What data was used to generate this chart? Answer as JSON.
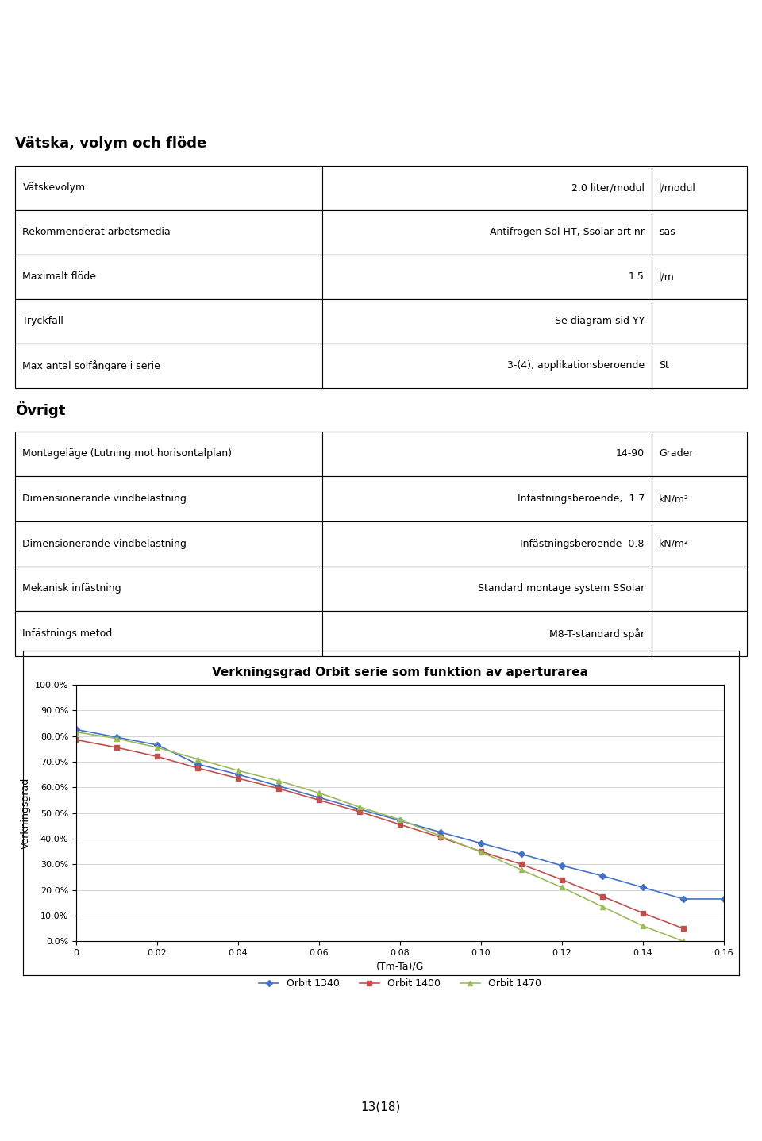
{
  "page_title": "13(18)",
  "section1_title": "Vätska, volym och flöde",
  "table1": [
    [
      "Vätskevolym",
      "2.0 liter/modul",
      "l/modul"
    ],
    [
      "Rekommenderat arbetsmedia",
      "Antifrogen Sol HT, Ssolar art nr",
      "sas"
    ],
    [
      "Maximalt flöde",
      "1.5",
      "l/m"
    ],
    [
      "Tryckfall",
      "Se diagram sid YY",
      ""
    ],
    [
      "Max antal solfångare i serie",
      "3-(4), applikationsberoende",
      "St"
    ]
  ],
  "section2_title": "Övrigt",
  "table2": [
    [
      "Montageläge (Lutning mot horisontalplan)",
      "14-90",
      "Grader"
    ],
    [
      "Dimensionerande vindbelastning",
      "Infästningsberoende,  1.7",
      "kN/m²"
    ],
    [
      "Dimensionerande vindbelastning",
      "Infästningsberoende  0.8",
      "kN/m²"
    ],
    [
      "Mekanisk infästning",
      "Standard montage system SSolar",
      ""
    ],
    [
      "Infästnings metod",
      "M8-T-standard spår",
      ""
    ]
  ],
  "chart_title": "Verkningsgrad Orbit serie som funktion av aperturarea",
  "chart_xlabel": "(Tm-Ta)/G",
  "chart_ylabel": "Verkningsgrad",
  "x_orbit1340": [
    0,
    0.01,
    0.02,
    0.03,
    0.04,
    0.05,
    0.06,
    0.07,
    0.08,
    0.09,
    0.1,
    0.11,
    0.12,
    0.13,
    0.14,
    0.15,
    0.16
  ],
  "y_orbit1340": [
    0.825,
    0.795,
    0.765,
    0.69,
    0.65,
    0.605,
    0.56,
    0.515,
    0.47,
    0.425,
    0.382,
    0.34,
    0.295,
    0.255,
    0.21,
    0.165,
    0.165
  ],
  "x_orbit1400": [
    0,
    0.01,
    0.02,
    0.03,
    0.04,
    0.05,
    0.06,
    0.07,
    0.08,
    0.09,
    0.1,
    0.11,
    0.12,
    0.13,
    0.14,
    0.15
  ],
  "y_orbit1400": [
    0.785,
    0.755,
    0.72,
    0.675,
    0.635,
    0.595,
    0.55,
    0.505,
    0.455,
    0.405,
    0.35,
    0.3,
    0.24,
    0.175,
    0.11,
    0.05
  ],
  "x_orbit1470": [
    0,
    0.01,
    0.02,
    0.03,
    0.04,
    0.05,
    0.06,
    0.07,
    0.08,
    0.09,
    0.1,
    0.11,
    0.12,
    0.13,
    0.14,
    0.15
  ],
  "y_orbit1470": [
    0.815,
    0.79,
    0.755,
    0.71,
    0.665,
    0.625,
    0.578,
    0.523,
    0.474,
    0.41,
    0.348,
    0.278,
    0.21,
    0.135,
    0.06,
    0.0
  ],
  "color_1340": "#4472C4",
  "color_1400": "#C0504D",
  "color_1470": "#9BBB59",
  "xlim": [
    0,
    0.16
  ],
  "ylim": [
    0.0,
    1.0
  ],
  "yticks": [
    0.0,
    0.1,
    0.2,
    0.3,
    0.4,
    0.5,
    0.6,
    0.7,
    0.8,
    0.9,
    1.0
  ],
  "xticks": [
    0,
    0.02,
    0.04,
    0.06,
    0.08,
    0.1,
    0.12,
    0.14,
    0.16
  ],
  "col_starts": [
    0.0,
    0.42,
    0.87
  ]
}
